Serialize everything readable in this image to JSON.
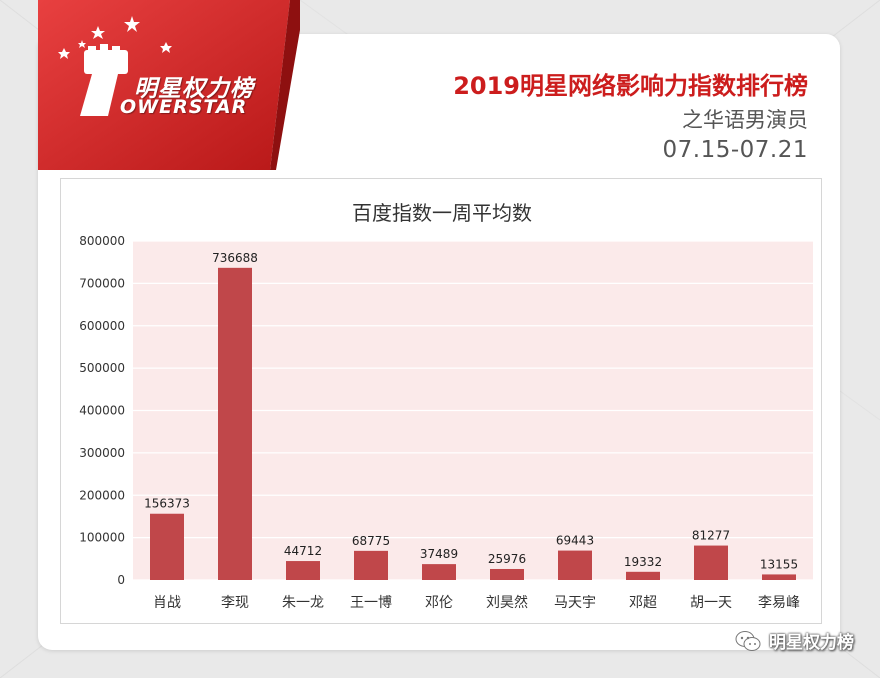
{
  "brand": {
    "logo_cn": "明星权力榜",
    "logo_en": "OWERSTAR",
    "color": "#d42a2a"
  },
  "header": {
    "title": "2019明星网络影响力指数排行榜",
    "subtitle": "之华语男演员",
    "date_range": "07.15-07.21",
    "title_color": "#cc1d1d"
  },
  "watermark": {
    "icon": "wechat-icon",
    "text": "明星权力榜"
  },
  "chart_data": {
    "type": "bar",
    "title": "百度指数一周平均数",
    "categories": [
      "肖战",
      "李现",
      "朱一龙",
      "王一博",
      "邓伦",
      "刘昊然",
      "马天宇",
      "邓超",
      "胡一天",
      "李易峰"
    ],
    "values": [
      156373,
      736688,
      44712,
      68775,
      37489,
      25976,
      69443,
      19332,
      81277,
      13155
    ],
    "ylim": [
      0,
      800000
    ],
    "yticks": [
      0,
      100000,
      200000,
      300000,
      400000,
      500000,
      600000,
      700000,
      800000
    ],
    "grid": true,
    "plot_bg": "#fbeaea",
    "bar_color": "#c0474a",
    "xlabel": "",
    "ylabel": ""
  }
}
